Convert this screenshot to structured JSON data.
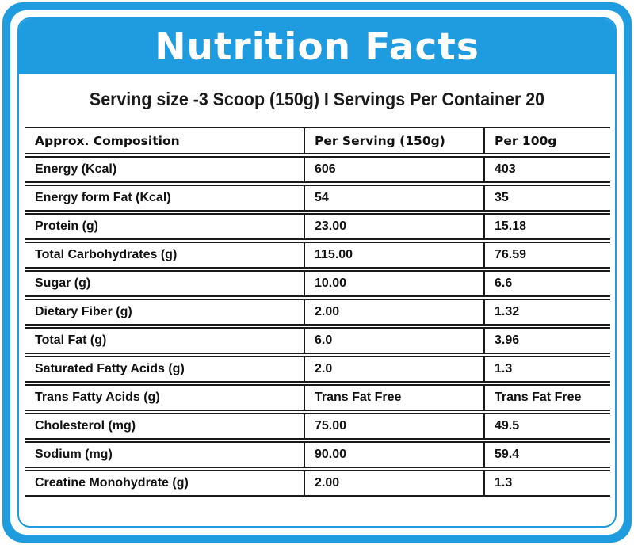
{
  "title": "Nutrition Facts",
  "serving_line": "Serving size -3 Scoop (150g) I  Servings Per Container 20",
  "colors": {
    "accent": "#1f9be0",
    "text": "#111111",
    "background": "#ffffff"
  },
  "table": {
    "headers": [
      "Approx. Composition",
      "Per Serving  (150g)",
      "Per 100g"
    ],
    "rows": [
      [
        "Energy (Kcal)",
        "606",
        "403"
      ],
      [
        "Energy form Fat (Kcal)",
        "54",
        "35"
      ],
      [
        "Protein (g)",
        "23.00",
        "15.18"
      ],
      [
        "Total Carbohydrates (g)",
        "115.00",
        "76.59"
      ],
      [
        "Sugar (g)",
        "10.00",
        "6.6"
      ],
      [
        "Dietary Fiber (g)",
        "2.00",
        "1.32"
      ],
      [
        "Total Fat (g)",
        "6.0",
        "3.96"
      ],
      [
        "Saturated Fatty Acids (g)",
        "2.0",
        "1.3"
      ],
      [
        "Trans Fatty Acids (g)",
        "Trans Fat Free",
        "Trans Fat Free"
      ],
      [
        "Cholesterol (mg)",
        "75.00",
        "49.5"
      ],
      [
        "Sodium (mg)",
        "90.00",
        "59.4"
      ],
      [
        "Creatine Monohydrate (g)",
        "2.00",
        "1.3"
      ]
    ]
  }
}
